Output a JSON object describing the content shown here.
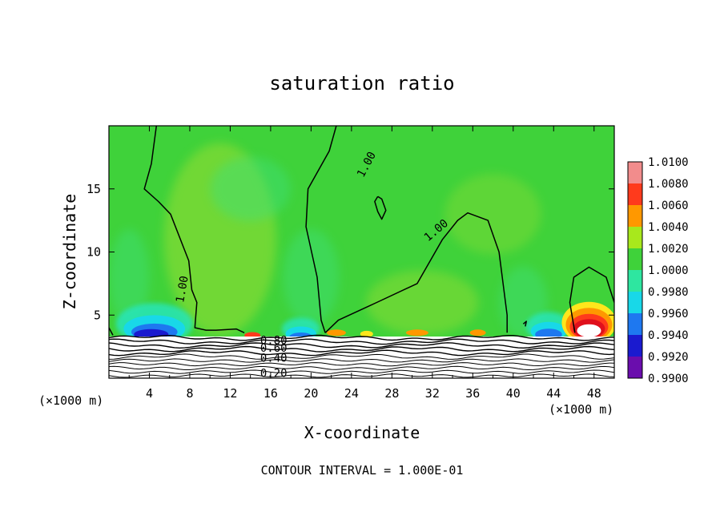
{
  "chart_data": {
    "type": "heatmap",
    "title": "saturation ratio",
    "xlabel": "X-coordinate",
    "ylabel": "Z-coordinate",
    "x_unit_left": "(×1000 m)",
    "x_unit_right": "(×1000 m)",
    "footer": "CONTOUR INTERVAL = 1.000E-01",
    "xlim": [
      0,
      50
    ],
    "ylim": [
      0,
      20
    ],
    "x_ticks": [
      4,
      8,
      12,
      16,
      20,
      24,
      28,
      32,
      36,
      40,
      44,
      48
    ],
    "x_tick_labels": [
      "4",
      "8",
      "12",
      "16",
      "20",
      "24",
      "28",
      "32",
      "36",
      "40",
      "44",
      "48"
    ],
    "y_ticks": [
      5,
      10,
      15
    ],
    "y_tick_labels": [
      "5",
      "10",
      "15"
    ],
    "colorbar": {
      "levels": [
        0.99,
        0.992,
        0.994,
        0.996,
        0.998,
        1.0,
        1.002,
        1.004,
        1.006,
        1.008,
        1.01
      ],
      "labels": [
        "0.9900",
        "0.9920",
        "0.9940",
        "0.9960",
        "0.9980",
        "1.0000",
        "1.0020",
        "1.0040",
        "1.0060",
        "1.0080",
        "1.0100"
      ],
      "colors": [
        "#6a0dad",
        "#1a1acf",
        "#1e78f0",
        "#18d8e8",
        "#2ee6a0",
        "#3fd23a",
        "#a8e81c",
        "#ff9800",
        "#ff3a1c",
        "#e0101c",
        "#f28c8c"
      ]
    },
    "background_value": 1.0,
    "background_color": "#3fd23a",
    "contour_labels": [
      {
        "text": "1.00",
        "x": 25.8,
        "z": 16.8
      },
      {
        "text": "1.00",
        "x": 32.6,
        "z": 11.5
      },
      {
        "text": "1.00",
        "x": 7.6,
        "z": 7.0
      },
      {
        "text": "0.80",
        "x": 16.3,
        "z": 2.7
      },
      {
        "text": "0.60",
        "x": 16.3,
        "z": 2.1
      },
      {
        "text": "0.40",
        "x": 16.3,
        "z": 1.3
      },
      {
        "text": "0.20",
        "x": 16.3,
        "z": 0.1
      }
    ],
    "features": [
      {
        "desc": "dry blue pocket near surface",
        "x": 4.5,
        "z": 4.0,
        "value": 0.992
      },
      {
        "desc": "dry blue pocket near surface",
        "x": 19.0,
        "z": 3.7,
        "value": 0.995
      },
      {
        "desc": "dry blue pocket near surface",
        "x": 43.5,
        "z": 3.8,
        "value": 0.993
      },
      {
        "desc": "supersaturated pocket",
        "x": 47.5,
        "z": 4.0,
        "value": 1.01
      },
      {
        "desc": "supersaturated streak",
        "x": 22.5,
        "z": 3.7,
        "value": 1.006
      },
      {
        "desc": "supersaturated streak",
        "x": 14.5,
        "z": 3.4,
        "value": 1.006
      }
    ],
    "surface_layer_top": 3.3
  }
}
